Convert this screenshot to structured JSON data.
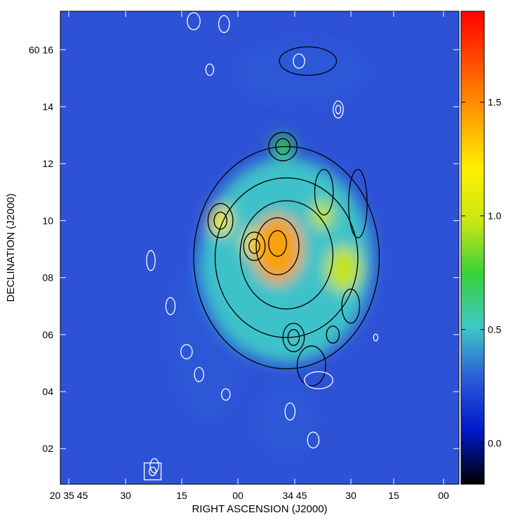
{
  "chart_data": {
    "type": "heatmap",
    "title": "",
    "xlabel": "RIGHT ASCENSION (J2000)",
    "ylabel": "DECLINATION (J2000)",
    "x_ticks": [
      "20 35 45",
      "30",
      "15",
      "00",
      "34 45",
      "30",
      "15",
      "00"
    ],
    "y_ticks": [
      "02",
      "04",
      "06",
      "08",
      "10",
      "12",
      "14",
      "60 16"
    ],
    "y_tick_values": [
      2,
      4,
      6,
      8,
      10,
      12,
      14,
      16
    ],
    "ylim": [
      0.75,
      17.35
    ],
    "colorbar": {
      "ticks": [
        "0.0",
        "0.5",
        "1.0",
        "1.5"
      ],
      "tick_values": [
        0.0,
        0.5,
        1.0,
        1.5
      ],
      "range": [
        -0.18,
        1.9
      ],
      "colormap": [
        "#000000",
        "#0018c8",
        "#2a5ad8",
        "#3fc8c8",
        "#38d238",
        "#c8e614",
        "#fff000",
        "#ffa000",
        "#ff5000",
        "#ff0000"
      ]
    },
    "background_color": "#2e52d6",
    "emission_map": {
      "center_ra_sec": 44,
      "center_dec_min": 8.6,
      "components": [
        {
          "label": "disk",
          "ra_sec": 44,
          "dec_min": 8.6,
          "radius_ra_sec": 24,
          "radius_dec_min": 3.6,
          "level": 0.62
        },
        {
          "label": "core",
          "ra_sec": 46.5,
          "dec_min": 9.0,
          "radius_ra_sec": 7,
          "radius_dec_min": 1.2,
          "level": 1.5
        },
        {
          "label": "knot-nw",
          "ra_sec": 53,
          "dec_min": 9.2,
          "radius_ra_sec": 3,
          "radius_dec_min": 0.5,
          "level": 1.25
        },
        {
          "label": "knot-w",
          "ra_sec": 62.5,
          "dec_min": 10.0,
          "radius_ra_sec": 3,
          "radius_dec_min": 0.5,
          "level": 1.1
        },
        {
          "label": "knot-e",
          "ra_sec": 28,
          "dec_min": 8.3,
          "radius_ra_sec": 5,
          "radius_dec_min": 0.8,
          "level": 1.05
        },
        {
          "label": "knot-n",
          "ra_sec": 45,
          "dec_min": 12.6,
          "radius_ra_sec": 3,
          "radius_dec_min": 0.4,
          "level": 0.7
        },
        {
          "label": "knot-ne",
          "ra_sec": 34,
          "dec_min": 10.2,
          "radius_ra_sec": 3,
          "radius_dec_min": 0.5,
          "level": 1.05
        },
        {
          "label": "arm-north",
          "ra_sec": 40,
          "dec_min": 15.2,
          "radius_ra_sec": 18,
          "radius_dec_min": 1.0,
          "level": 0.35
        },
        {
          "label": "arm-south",
          "ra_sec": 44,
          "dec_min": 3.0,
          "radius_ra_sec": 8,
          "radius_dec_min": 1.3,
          "level": 0.22
        },
        {
          "label": "arm-west",
          "ra_sec": 66,
          "dec_min": 6.0,
          "radius_ra_sec": 10,
          "radius_dec_min": 3.0,
          "level": 0.32
        }
      ]
    },
    "contours": {
      "black_levels_note": "",
      "black": [
        {
          "ra_sec": 44,
          "dec_min": 8.7,
          "rx_ra_sec": 26,
          "ry_dec_min": 3.9
        },
        {
          "ra_sec": 44,
          "dec_min": 8.7,
          "rx_ra_sec": 20,
          "ry_dec_min": 2.8
        },
        {
          "ra_sec": 44,
          "dec_min": 8.8,
          "rx_ra_sec": 13,
          "ry_dec_min": 1.9
        },
        {
          "ra_sec": 46.5,
          "dec_min": 9.1,
          "rx_ra_sec": 6,
          "ry_dec_min": 1.0
        },
        {
          "ra_sec": 46.5,
          "dec_min": 9.2,
          "rx_ra_sec": 2.5,
          "ry_dec_min": 0.45
        },
        {
          "ra_sec": 62.5,
          "dec_min": 10.0,
          "rx_ra_sec": 3.5,
          "ry_dec_min": 0.6
        },
        {
          "ra_sec": 62.5,
          "dec_min": 10.0,
          "rx_ra_sec": 1.8,
          "ry_dec_min": 0.3
        },
        {
          "ra_sec": 53,
          "dec_min": 9.1,
          "rx_ra_sec": 3,
          "ry_dec_min": 0.5
        },
        {
          "ra_sec": 53,
          "dec_min": 9.1,
          "rx_ra_sec": 1.5,
          "ry_dec_min": 0.25
        },
        {
          "ra_sec": 45,
          "dec_min": 12.6,
          "rx_ra_sec": 4,
          "ry_dec_min": 0.5
        },
        {
          "ra_sec": 45,
          "dec_min": 12.6,
          "rx_ra_sec": 2,
          "ry_dec_min": 0.28
        },
        {
          "ra_sec": 33.5,
          "dec_min": 11.0,
          "rx_ra_sec": 2.6,
          "ry_dec_min": 0.8
        },
        {
          "ra_sec": 24,
          "dec_min": 10.6,
          "rx_ra_sec": 2.6,
          "ry_dec_min": 1.2
        },
        {
          "ra_sec": 42,
          "dec_min": 5.9,
          "rx_ra_sec": 3,
          "ry_dec_min": 0.5
        },
        {
          "ra_sec": 42,
          "dec_min": 5.9,
          "rx_ra_sec": 1.6,
          "ry_dec_min": 0.28
        },
        {
          "ra_sec": 37,
          "dec_min": 4.9,
          "rx_ra_sec": 4,
          "ry_dec_min": 0.7
        },
        {
          "ra_sec": 31,
          "dec_min": 6.0,
          "rx_ra_sec": 1.8,
          "ry_dec_min": 0.3
        },
        {
          "ra_sec": 26,
          "dec_min": 7.0,
          "rx_ra_sec": 2.5,
          "ry_dec_min": 0.6
        },
        {
          "ra_sec": 38,
          "dec_min": 15.6,
          "rx_ra_sec": 8,
          "ry_dec_min": 0.5
        }
      ],
      "white": [
        {
          "ra_sec": 70,
          "dec_min": 17.0,
          "rx_ra_sec": 1.8,
          "ry_dec_min": 0.3
        },
        {
          "ra_sec": 61.5,
          "dec_min": 16.9,
          "rx_ra_sec": 1.5,
          "ry_dec_min": 0.3
        },
        {
          "ra_sec": 65.5,
          "dec_min": 15.3,
          "rx_ra_sec": 1.1,
          "ry_dec_min": 0.2
        },
        {
          "ra_sec": 40.5,
          "dec_min": 15.6,
          "rx_ra_sec": 1.6,
          "ry_dec_min": 0.25
        },
        {
          "ra_sec": 29.5,
          "dec_min": 13.9,
          "rx_ra_sec": 1.4,
          "ry_dec_min": 0.3
        },
        {
          "ra_sec": 29.5,
          "dec_min": 13.9,
          "rx_ra_sec": 0.7,
          "ry_dec_min": 0.15
        },
        {
          "ra_sec": 82,
          "dec_min": 8.6,
          "rx_ra_sec": 1.2,
          "ry_dec_min": 0.35
        },
        {
          "ra_sec": 76.5,
          "dec_min": 7.0,
          "rx_ra_sec": 1.3,
          "ry_dec_min": 0.3
        },
        {
          "ra_sec": 72,
          "dec_min": 5.4,
          "rx_ra_sec": 1.6,
          "ry_dec_min": 0.25
        },
        {
          "ra_sec": 68.5,
          "dec_min": 4.6,
          "rx_ra_sec": 1.3,
          "ry_dec_min": 0.25
        },
        {
          "ra_sec": 61,
          "dec_min": 3.9,
          "rx_ra_sec": 1.2,
          "ry_dec_min": 0.2
        },
        {
          "ra_sec": 36.5,
          "dec_min": 2.3,
          "rx_ra_sec": 1.6,
          "ry_dec_min": 0.28
        },
        {
          "ra_sec": 43,
          "dec_min": 3.3,
          "rx_ra_sec": 1.4,
          "ry_dec_min": 0.3
        },
        {
          "ra_sec": 35,
          "dec_min": 4.4,
          "rx_ra_sec": 4,
          "ry_dec_min": 0.3
        },
        {
          "ra_sec": 81,
          "dec_min": 1.4,
          "rx_ra_sec": 1.2,
          "ry_dec_min": 0.25
        },
        {
          "ra_sec": 19,
          "dec_min": 5.9,
          "rx_ra_sec": 0.6,
          "ry_dec_min": 0.12
        }
      ]
    },
    "beam": {
      "ra_sec": 81.5,
      "dec_min": 1.2
    }
  }
}
